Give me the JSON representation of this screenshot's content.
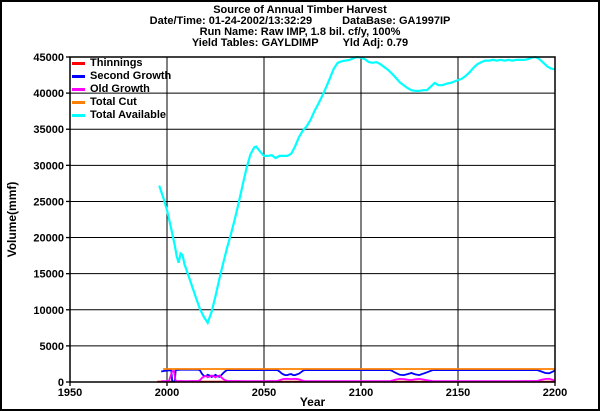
{
  "header": {
    "title": "Source of Annual Timber Harvest",
    "datetime": "Date/Time: 01-24-2002/13:32:29",
    "database": "DataBase: GA1997IP",
    "run_name": "Run Name: Raw IMP, 1.8 bil. cf/y, 100%",
    "yield_tables": "Yield Tables: GAYLDIMP",
    "yld_adj": "Yld Adj: 0.79"
  },
  "chart_data": {
    "type": "line",
    "title": "Source of Annual Timber Harvest",
    "xlabel": "Year",
    "ylabel": "Volume(mmf)",
    "xlim": [
      1950,
      2200
    ],
    "ylim": [
      0,
      45000
    ],
    "xticks": [
      1950,
      2000,
      2050,
      2100,
      2150,
      2200
    ],
    "yticks": [
      0,
      5000,
      10000,
      15000,
      20000,
      25000,
      30000,
      35000,
      40000,
      45000
    ],
    "grid": true,
    "grid_color": "#000000",
    "legend_position": "top-left",
    "series": [
      {
        "name": "Thinnings",
        "color": "#ff0000",
        "points": [
          [
            1995,
            40
          ],
          [
            2200,
            40
          ]
        ]
      },
      {
        "name": "Second Growth",
        "color": "#0000ff",
        "points": [
          [
            1997,
            1450
          ],
          [
            1999,
            1550
          ],
          [
            2001,
            1600
          ],
          [
            2002.2,
            1600
          ],
          [
            2002.7,
            80
          ],
          [
            2004,
            80
          ],
          [
            2004.5,
            1650
          ],
          [
            2007,
            1700
          ],
          [
            2012,
            1700
          ],
          [
            2016,
            1700
          ],
          [
            2017,
            1600
          ],
          [
            2018,
            1150
          ],
          [
            2019,
            850
          ],
          [
            2020,
            800
          ],
          [
            2021,
            1000
          ],
          [
            2022,
            900
          ],
          [
            2023,
            700
          ],
          [
            2024,
            850
          ],
          [
            2025,
            1000
          ],
          [
            2026,
            800
          ],
          [
            2027,
            700
          ],
          [
            2028,
            950
          ],
          [
            2029,
            1250
          ],
          [
            2030,
            1500
          ],
          [
            2031,
            1650
          ],
          [
            2040,
            1650
          ],
          [
            2050,
            1650
          ],
          [
            2057,
            1650
          ],
          [
            2058,
            1450
          ],
          [
            2059,
            1200
          ],
          [
            2060,
            1050
          ],
          [
            2061,
            950
          ],
          [
            2062,
            950
          ],
          [
            2063,
            1050
          ],
          [
            2064,
            1100
          ],
          [
            2065,
            950
          ],
          [
            2066,
            950
          ],
          [
            2067,
            1050
          ],
          [
            2068,
            1150
          ],
          [
            2069,
            1350
          ],
          [
            2070,
            1550
          ],
          [
            2071,
            1650
          ],
          [
            2085,
            1650
          ],
          [
            2100,
            1650
          ],
          [
            2115,
            1650
          ],
          [
            2116,
            1550
          ],
          [
            2118,
            1250
          ],
          [
            2120,
            1000
          ],
          [
            2122,
            950
          ],
          [
            2124,
            1100
          ],
          [
            2126,
            1250
          ],
          [
            2128,
            1050
          ],
          [
            2130,
            950
          ],
          [
            2132,
            1150
          ],
          [
            2134,
            1350
          ],
          [
            2136,
            1550
          ],
          [
            2137,
            1650
          ],
          [
            2150,
            1650
          ],
          [
            2165,
            1650
          ],
          [
            2180,
            1650
          ],
          [
            2191,
            1650
          ],
          [
            2193,
            1450
          ],
          [
            2195,
            1250
          ],
          [
            2197,
            1200
          ],
          [
            2199,
            1450
          ],
          [
            2200,
            1600
          ]
        ]
      },
      {
        "name": "Old Growth",
        "color": "#ff00ff",
        "points": [
          [
            1997,
            120
          ],
          [
            2001,
            120
          ],
          [
            2002.7,
            1500
          ],
          [
            2003.5,
            1550
          ],
          [
            2004.5,
            150
          ],
          [
            2010,
            120
          ],
          [
            2016,
            150
          ],
          [
            2017,
            250
          ],
          [
            2018,
            550
          ],
          [
            2019,
            750
          ],
          [
            2020,
            850
          ],
          [
            2021,
            650
          ],
          [
            2022,
            750
          ],
          [
            2023,
            900
          ],
          [
            2024,
            800
          ],
          [
            2025,
            650
          ],
          [
            2026,
            800
          ],
          [
            2027,
            900
          ],
          [
            2028,
            650
          ],
          [
            2029,
            400
          ],
          [
            2030,
            250
          ],
          [
            2031,
            150
          ],
          [
            2040,
            120
          ],
          [
            2050,
            120
          ],
          [
            2057,
            150
          ],
          [
            2058,
            250
          ],
          [
            2059,
            350
          ],
          [
            2060,
            420
          ],
          [
            2062,
            450
          ],
          [
            2064,
            400
          ],
          [
            2066,
            450
          ],
          [
            2068,
            380
          ],
          [
            2069,
            280
          ],
          [
            2070,
            180
          ],
          [
            2071,
            130
          ],
          [
            2085,
            120
          ],
          [
            2100,
            120
          ],
          [
            2115,
            130
          ],
          [
            2116,
            200
          ],
          [
            2118,
            350
          ],
          [
            2120,
            430
          ],
          [
            2122,
            400
          ],
          [
            2124,
            330
          ],
          [
            2126,
            280
          ],
          [
            2128,
            380
          ],
          [
            2130,
            430
          ],
          [
            2132,
            350
          ],
          [
            2134,
            250
          ],
          [
            2136,
            160
          ],
          [
            2137,
            130
          ],
          [
            2150,
            120
          ],
          [
            2165,
            120
          ],
          [
            2180,
            120
          ],
          [
            2191,
            150
          ],
          [
            2193,
            300
          ],
          [
            2195,
            420
          ],
          [
            2197,
            450
          ],
          [
            2199,
            280
          ],
          [
            2200,
            200
          ]
        ]
      },
      {
        "name": "Total Cut",
        "color": "#ff8000",
        "points": [
          [
            1998,
            1800
          ],
          [
            2200,
            1800
          ]
        ]
      },
      {
        "name": "Total Available",
        "color": "#00ffff",
        "points": [
          [
            1996,
            27200
          ],
          [
            1998,
            25600
          ],
          [
            2000,
            23800
          ],
          [
            2002,
            21400
          ],
          [
            2004,
            18900
          ],
          [
            2005,
            17400
          ],
          [
            2006,
            16500
          ],
          [
            2007,
            17800
          ],
          [
            2008,
            17600
          ],
          [
            2009,
            16300
          ],
          [
            2011,
            14800
          ],
          [
            2013,
            13200
          ],
          [
            2015,
            11600
          ],
          [
            2017,
            10100
          ],
          [
            2019,
            9000
          ],
          [
            2021,
            8200
          ],
          [
            2023,
            9700
          ],
          [
            2025,
            11900
          ],
          [
            2027,
            14300
          ],
          [
            2029,
            16500
          ],
          [
            2031,
            18600
          ],
          [
            2033,
            20500
          ],
          [
            2035,
            22600
          ],
          [
            2037,
            24900
          ],
          [
            2039,
            27300
          ],
          [
            2041,
            29600
          ],
          [
            2043,
            31500
          ],
          [
            2045,
            32500
          ],
          [
            2046,
            32600
          ],
          [
            2048,
            31900
          ],
          [
            2050,
            31300
          ],
          [
            2052,
            31300
          ],
          [
            2054,
            31400
          ],
          [
            2056,
            31000
          ],
          [
            2058,
            31300
          ],
          [
            2060,
            31300
          ],
          [
            2062,
            31300
          ],
          [
            2064,
            31600
          ],
          [
            2066,
            32600
          ],
          [
            2068,
            33900
          ],
          [
            2070,
            34800
          ],
          [
            2072,
            35400
          ],
          [
            2074,
            36300
          ],
          [
            2076,
            37500
          ],
          [
            2078,
            38500
          ],
          [
            2080,
            39600
          ],
          [
            2082,
            40800
          ],
          [
            2084,
            42100
          ],
          [
            2086,
            43400
          ],
          [
            2088,
            44200
          ],
          [
            2090,
            44400
          ],
          [
            2092,
            44500
          ],
          [
            2094,
            44600
          ],
          [
            2096,
            44800
          ],
          [
            2098,
            45000
          ],
          [
            2100,
            44900
          ],
          [
            2102,
            44700
          ],
          [
            2104,
            44300
          ],
          [
            2106,
            44200
          ],
          [
            2108,
            44300
          ],
          [
            2110,
            44000
          ],
          [
            2112,
            43600
          ],
          [
            2114,
            43200
          ],
          [
            2116,
            42700
          ],
          [
            2118,
            42100
          ],
          [
            2120,
            41500
          ],
          [
            2122,
            41100
          ],
          [
            2124,
            40700
          ],
          [
            2126,
            40400
          ],
          [
            2128,
            40300
          ],
          [
            2130,
            40300
          ],
          [
            2132,
            40400
          ],
          [
            2134,
            40400
          ],
          [
            2136,
            40900
          ],
          [
            2138,
            41400
          ],
          [
            2140,
            41100
          ],
          [
            2142,
            41100
          ],
          [
            2144,
            41300
          ],
          [
            2146,
            41400
          ],
          [
            2148,
            41600
          ],
          [
            2150,
            41800
          ],
          [
            2152,
            42000
          ],
          [
            2154,
            42400
          ],
          [
            2156,
            42900
          ],
          [
            2158,
            43500
          ],
          [
            2160,
            44000
          ],
          [
            2162,
            44300
          ],
          [
            2164,
            44500
          ],
          [
            2166,
            44500
          ],
          [
            2168,
            44600
          ],
          [
            2170,
            44500
          ],
          [
            2172,
            44600
          ],
          [
            2174,
            44500
          ],
          [
            2176,
            44600
          ],
          [
            2178,
            44500
          ],
          [
            2180,
            44600
          ],
          [
            2182,
            44600
          ],
          [
            2184,
            44600
          ],
          [
            2186,
            44700
          ],
          [
            2188,
            44900
          ],
          [
            2190,
            45000
          ],
          [
            2192,
            44700
          ],
          [
            2194,
            44200
          ],
          [
            2196,
            43700
          ],
          [
            2198,
            43400
          ],
          [
            2200,
            43300
          ]
        ]
      }
    ]
  }
}
